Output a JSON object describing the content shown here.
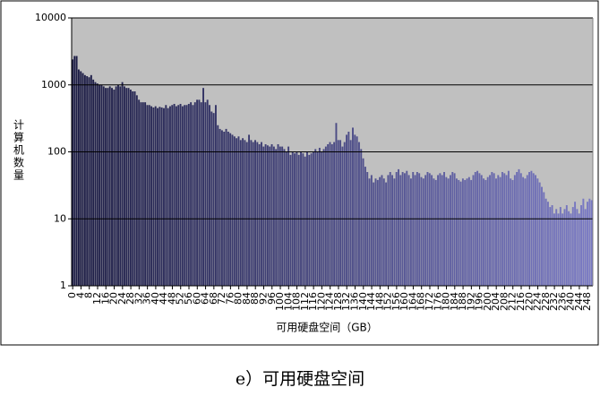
{
  "chart_data": {
    "type": "bar",
    "caption": "e）可用硬盘空间",
    "x_label": "可用硬盘空间（GB）",
    "y_label": "计算机数量",
    "log_y": true,
    "ylim": [
      1,
      10000
    ],
    "yticks": [
      1,
      10,
      100,
      1000,
      10000
    ],
    "grid": true,
    "background": "#c0c0c0",
    "colors": [
      "#1c1c44",
      "#7a7ac4"
    ],
    "categories": [
      "0",
      null,
      null,
      null,
      "4",
      null,
      null,
      null,
      "8",
      null,
      null,
      null,
      "12",
      null,
      null,
      null,
      "16",
      null,
      null,
      null,
      "20",
      null,
      null,
      null,
      "24",
      null,
      null,
      null,
      "28",
      null,
      null,
      null,
      "32",
      null,
      null,
      null,
      "36",
      null,
      null,
      null,
      "40",
      null,
      null,
      null,
      "44",
      null,
      null,
      null,
      "48",
      null,
      null,
      null,
      "52",
      null,
      null,
      null,
      "56",
      null,
      null,
      null,
      "60",
      null,
      null,
      null,
      "64",
      null,
      null,
      null,
      "68",
      null,
      null,
      null,
      "72",
      null,
      null,
      null,
      "76",
      null,
      null,
      null,
      "80",
      null,
      null,
      null,
      "84",
      null,
      null,
      null,
      "88",
      null,
      null,
      null,
      "92",
      null,
      null,
      null,
      "96",
      null,
      null,
      null,
      "100",
      null,
      null,
      null,
      "104",
      null,
      null,
      null,
      "108",
      null,
      null,
      null,
      "112",
      null,
      null,
      null,
      "116",
      null,
      null,
      null,
      "120",
      null,
      null,
      null,
      "124",
      null,
      null,
      null,
      "128",
      null,
      null,
      null,
      "132",
      null,
      null,
      null,
      "136",
      null,
      null,
      null,
      "140",
      null,
      null,
      null,
      "144",
      null,
      null,
      null,
      "148",
      null,
      null,
      null,
      "152",
      null,
      null,
      null,
      "156",
      null,
      null,
      null,
      "160",
      null,
      null,
      null,
      "164",
      null,
      null,
      null,
      "168",
      null,
      null,
      null,
      "172",
      null,
      null,
      null,
      "176",
      null,
      null,
      null,
      "180",
      null,
      null,
      null,
      "184",
      null,
      null,
      null,
      "188",
      null,
      null,
      null,
      "192",
      null,
      null,
      null,
      "196",
      null,
      null,
      null,
      "200",
      null,
      null,
      null,
      "204",
      null,
      null,
      null,
      "208",
      null,
      null,
      null,
      "212",
      null,
      null,
      null,
      "216",
      null,
      null,
      null,
      "220",
      null,
      null,
      null,
      "224",
      null,
      null,
      null,
      "228",
      null,
      null,
      null,
      "232",
      null,
      null,
      null,
      "236",
      null,
      null,
      null,
      "240",
      null,
      null,
      null,
      "244",
      null,
      null,
      null,
      "248",
      null,
      null
    ],
    "values": [
      2400,
      2700,
      2700,
      1700,
      1600,
      1500,
      1400,
      1350,
      1300,
      1400,
      1200,
      1100,
      1050,
      1000,
      1000,
      950,
      900,
      900,
      950,
      900,
      850,
      950,
      1000,
      950,
      1100,
      950,
      900,
      900,
      850,
      800,
      800,
      700,
      600,
      550,
      550,
      550,
      500,
      500,
      480,
      460,
      480,
      450,
      470,
      460,
      450,
      500,
      450,
      480,
      500,
      520,
      480,
      500,
      520,
      480,
      500,
      500,
      520,
      550,
      500,
      550,
      600,
      600,
      550,
      900,
      550,
      600,
      500,
      400,
      380,
      500,
      250,
      220,
      210,
      200,
      220,
      200,
      190,
      180,
      170,
      160,
      170,
      150,
      160,
      150,
      140,
      180,
      150,
      140,
      150,
      140,
      130,
      140,
      120,
      130,
      125,
      120,
      130,
      120,
      110,
      130,
      120,
      120,
      110,
      100,
      120,
      90,
      100,
      95,
      100,
      90,
      100,
      95,
      85,
      100,
      90,
      95,
      100,
      110,
      100,
      115,
      100,
      110,
      120,
      130,
      140,
      130,
      140,
      270,
      150,
      150,
      120,
      140,
      180,
      200,
      150,
      230,
      180,
      170,
      140,
      110,
      80,
      60,
      50,
      40,
      45,
      35,
      40,
      38,
      42,
      45,
      40,
      35,
      45,
      50,
      45,
      40,
      50,
      55,
      45,
      50,
      48,
      52,
      45,
      40,
      50,
      45,
      50,
      48,
      42,
      40,
      45,
      50,
      48,
      45,
      40,
      38,
      45,
      48,
      45,
      50,
      42,
      40,
      45,
      50,
      48,
      40,
      38,
      36,
      40,
      38,
      40,
      42,
      38,
      45,
      50,
      52,
      48,
      45,
      40,
      38,
      42,
      45,
      50,
      48,
      40,
      45,
      42,
      50,
      48,
      45,
      52,
      40,
      38,
      45,
      50,
      55,
      48,
      42,
      40,
      45,
      50,
      52,
      48,
      45,
      40,
      35,
      30,
      25,
      20,
      18,
      15,
      16,
      12,
      14,
      12,
      15,
      12,
      14,
      16,
      13,
      12,
      15,
      18,
      14,
      12,
      16,
      20,
      14,
      18,
      20,
      19
    ]
  }
}
